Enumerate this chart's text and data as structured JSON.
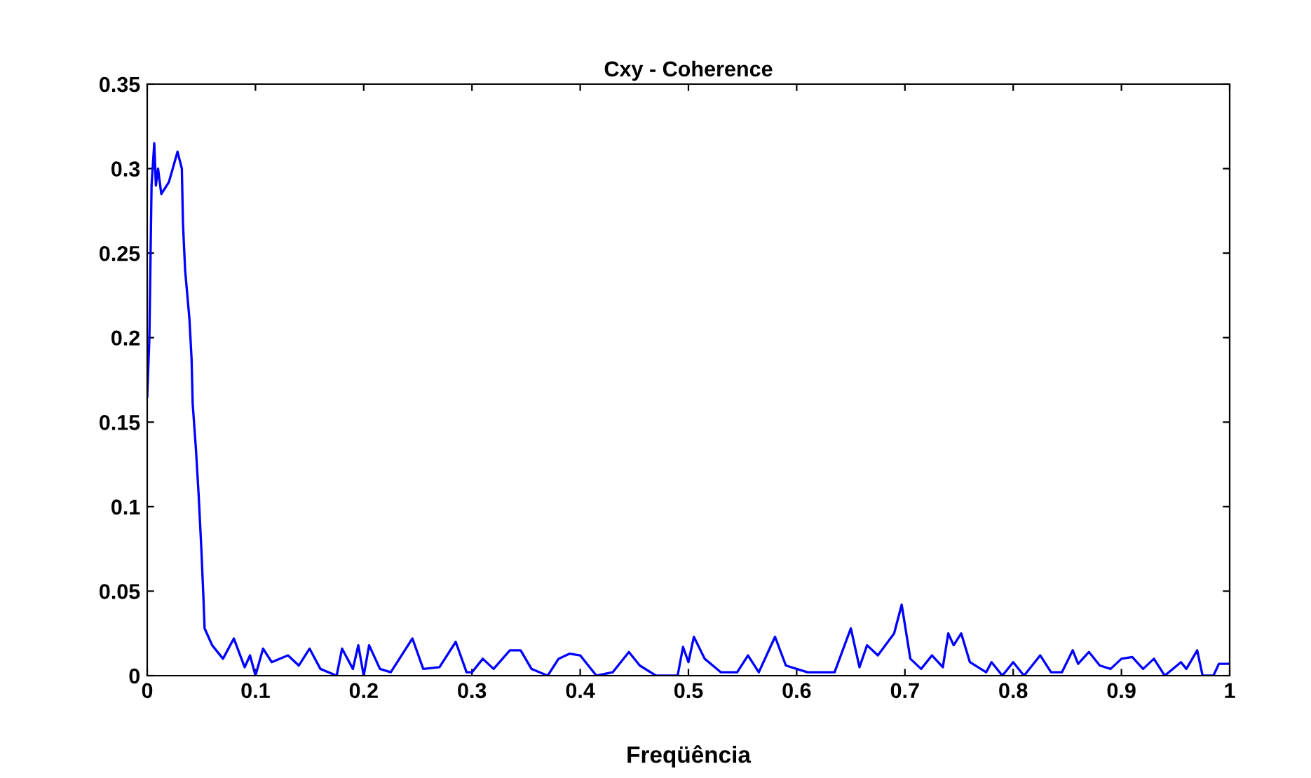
{
  "chart_data": {
    "type": "line",
    "title": "Cxy - Coherence",
    "xlabel": "Freqüência",
    "x": [
      0,
      0.002,
      0.004,
      0.0065,
      0.008,
      0.01,
      0.013,
      0.02,
      0.028,
      0.032,
      0.033,
      0.035,
      0.039,
      0.041,
      0.042,
      0.045,
      0.0475,
      0.05,
      0.052,
      0.053,
      0.06,
      0.07,
      0.08,
      0.09,
      0.095,
      0.1,
      0.107,
      0.115,
      0.13,
      0.14,
      0.15,
      0.16,
      0.175,
      0.18,
      0.19,
      0.195,
      0.2,
      0.205,
      0.215,
      0.225,
      0.245,
      0.255,
      0.27,
      0.285,
      0.295,
      0.3,
      0.31,
      0.32,
      0.335,
      0.345,
      0.355,
      0.37,
      0.38,
      0.39,
      0.4,
      0.405,
      0.415,
      0.43,
      0.445,
      0.455,
      0.47,
      0.49,
      0.495,
      0.5,
      0.505,
      0.515,
      0.53,
      0.545,
      0.555,
      0.565,
      0.58,
      0.59,
      0.6,
      0.61,
      0.635,
      0.65,
      0.658,
      0.665,
      0.675,
      0.69,
      0.697,
      0.705,
      0.715,
      0.725,
      0.735,
      0.74,
      0.745,
      0.752,
      0.76,
      0.775,
      0.78,
      0.79,
      0.8,
      0.81,
      0.825,
      0.835,
      0.845,
      0.855,
      0.86,
      0.87,
      0.88,
      0.89,
      0.9,
      0.91,
      0.92,
      0.93,
      0.94,
      0.955,
      0.96,
      0.97,
      0.975,
      0.985,
      0.99,
      1.0
    ],
    "series": [
      {
        "color": "#0000ff",
        "values": [
          0.165,
          0.2,
          0.29,
          0.315,
          0.29,
          0.3,
          0.285,
          0.292,
          0.31,
          0.3,
          0.268,
          0.24,
          0.211,
          0.187,
          0.161,
          0.134,
          0.107,
          0.075,
          0.045,
          0.028,
          0.018,
          0.01,
          0.022,
          0.005,
          0.012,
          0.0,
          0.016,
          0.008,
          0.012,
          0.006,
          0.016,
          0.004,
          0.0,
          0.016,
          0.004,
          0.018,
          0.0,
          0.018,
          0.004,
          0.002,
          0.022,
          0.004,
          0.005,
          0.02,
          0.002,
          0.002,
          0.01,
          0.004,
          0.015,
          0.015,
          0.004,
          0.0,
          0.01,
          0.013,
          0.012,
          0.008,
          0.0,
          0.002,
          0.014,
          0.006,
          0.0,
          0.0,
          0.017,
          0.008,
          0.023,
          0.01,
          0.002,
          0.002,
          0.012,
          0.002,
          0.023,
          0.006,
          0.004,
          0.002,
          0.002,
          0.028,
          0.005,
          0.018,
          0.012,
          0.025,
          0.042,
          0.01,
          0.004,
          0.012,
          0.005,
          0.025,
          0.018,
          0.025,
          0.008,
          0.002,
          0.008,
          0.0,
          0.008,
          0.0,
          0.012,
          0.002,
          0.002,
          0.015,
          0.007,
          0.014,
          0.006,
          0.004,
          0.01,
          0.011,
          0.004,
          0.01,
          0.0,
          0.008,
          0.004,
          0.015,
          0.0,
          0.0,
          0.007,
          0.007
        ]
      }
    ],
    "xlim": [
      0,
      1
    ],
    "ylim": [
      0,
      0.35
    ],
    "xticks": [
      0,
      0.1,
      0.2,
      0.3,
      0.4,
      0.5,
      0.6,
      0.7,
      0.8,
      0.9,
      1
    ],
    "yticks": [
      0,
      0.05,
      0.1,
      0.15,
      0.2,
      0.25,
      0.3,
      0.35
    ],
    "grid": false,
    "marker": "none",
    "line_style": "solid"
  }
}
